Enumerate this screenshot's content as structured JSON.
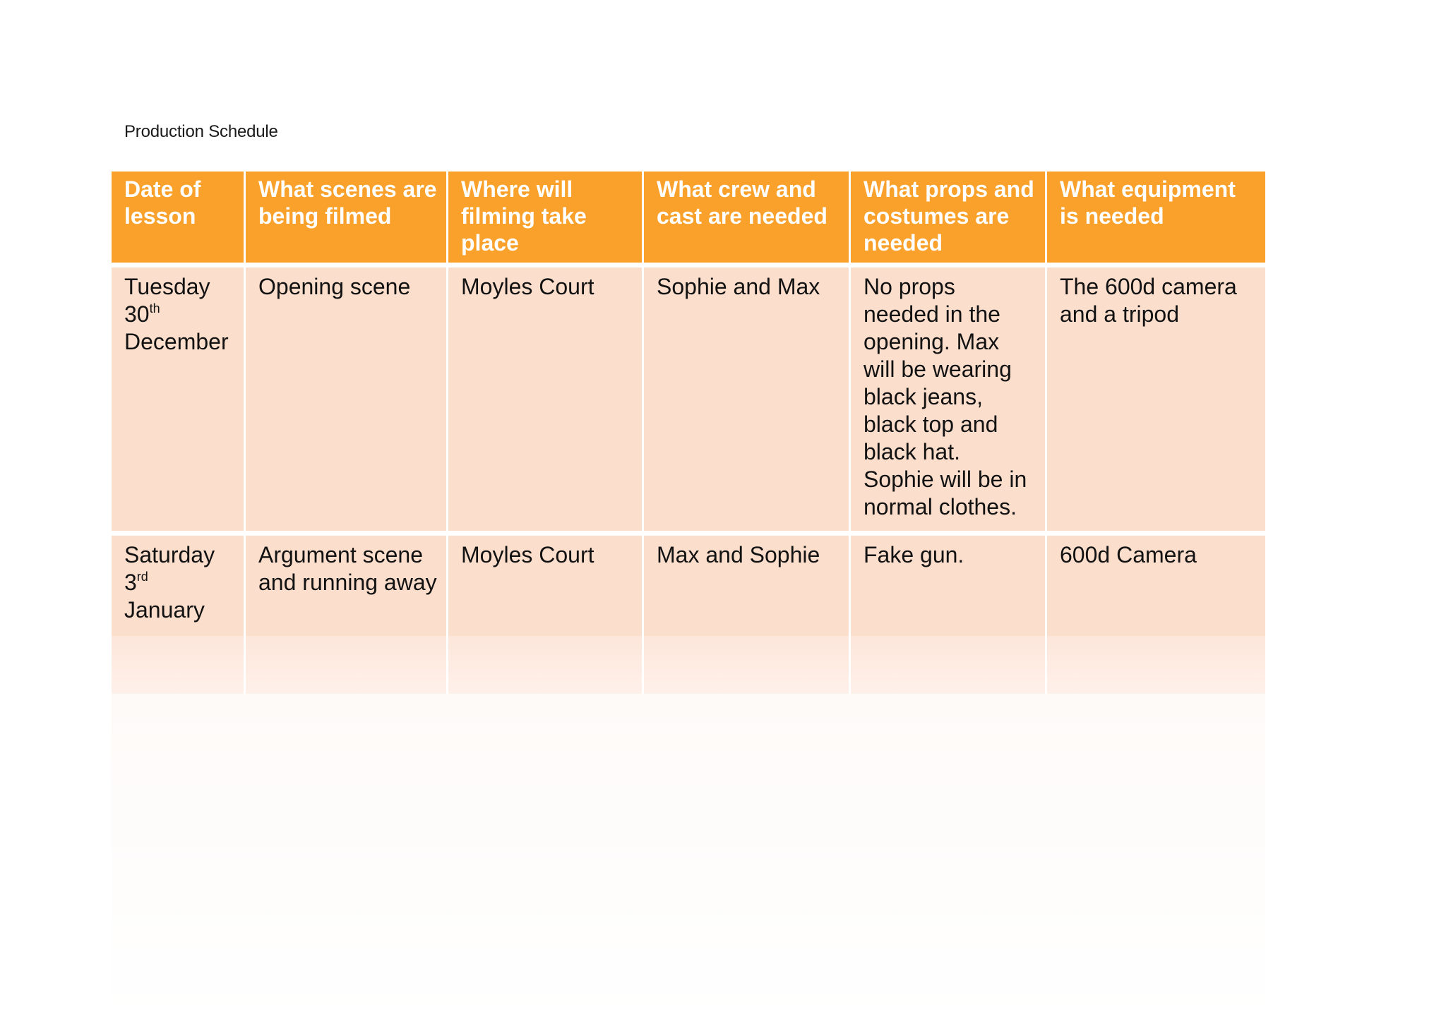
{
  "document": {
    "title": "Production Schedule"
  },
  "table": {
    "headers": [
      "Date of lesson",
      "What scenes are being filmed",
      "Where will filming take place",
      "What crew and cast are needed",
      "What props and costumes are needed",
      "What equipment is needed"
    ],
    "rows": [
      {
        "date": {
          "weekday": "Tuesday",
          "day": "30",
          "suffix": "th",
          "month": "December"
        },
        "scene": "Opening scene",
        "location": "Moyles Court",
        "crew": "Sophie and Max",
        "props": "No props needed in the opening. Max will be wearing black jeans, black top and black hat. Sophie will be in normal clothes.",
        "equipment": "The 600d camera and a tripod"
      },
      {
        "date": {
          "weekday": "Saturday",
          "day": "3",
          "suffix": "rd",
          "month": "January"
        },
        "scene": "Argument scene and running away",
        "location": "Moyles Court",
        "crew": "Max and Sophie",
        "props": "Fake gun.",
        "equipment": "600d Camera"
      }
    ]
  },
  "colors": {
    "header_fill": "#f9a12a",
    "body_fill": "#fcdecd",
    "header_text": "#ffffff",
    "body_text": "#121212"
  }
}
